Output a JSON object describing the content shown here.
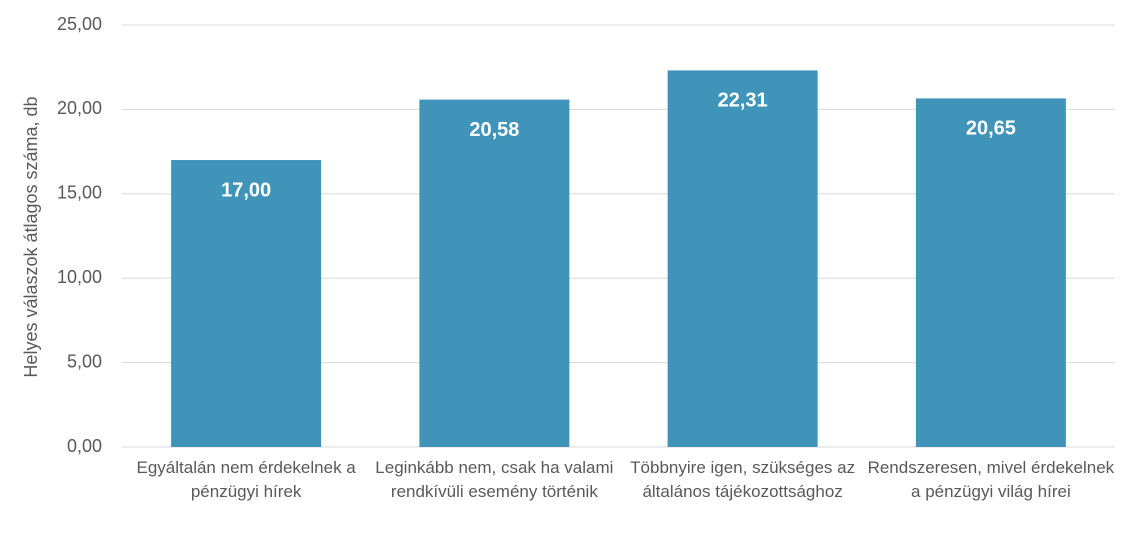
{
  "chart_data": {
    "type": "bar",
    "y_axis_label": "Helyes válaszok átlagos száma, db",
    "categories": [
      "Egyáltalán nem érdekelnek a pénzügyi hírek",
      "Leginkább nem, csak ha valami rendkívüli esemény történik",
      "Többnyire igen, szükséges az általános tájékozottsághoz",
      "Rendszeresen, mivel érdekelnek a pénzügyi világ hírei"
    ],
    "values": [
      17.0,
      20.58,
      22.31,
      20.65
    ],
    "value_labels": [
      "17,00",
      "20,58",
      "22,31",
      "20,65"
    ],
    "color": "#4093b9",
    "ylim": [
      0,
      25
    ],
    "yticks": [
      {
        "value": 0,
        "label": "0,00"
      },
      {
        "value": 5,
        "label": "5,00"
      },
      {
        "value": 10,
        "label": "10,00"
      },
      {
        "value": 15,
        "label": "15,00"
      },
      {
        "value": 20,
        "label": "20,00"
      },
      {
        "value": 25,
        "label": "25,00"
      }
    ],
    "grid": true
  }
}
